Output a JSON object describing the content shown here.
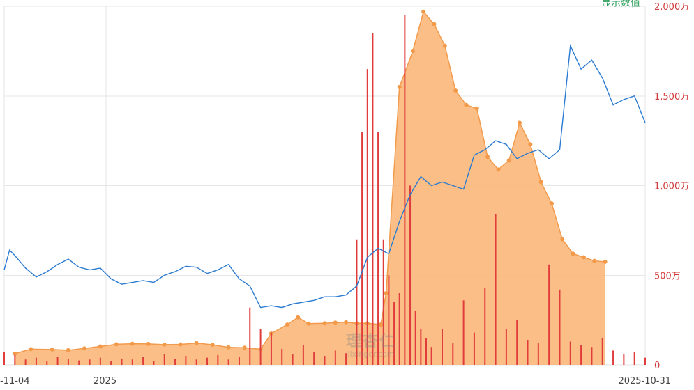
{
  "chart_data": {
    "type": "line",
    "title": "",
    "series_label": "显示数值",
    "y_right": {
      "ticks": [
        0,
        500,
        1000,
        1500,
        2000
      ],
      "tick_labels": [
        "0",
        "500万",
        "1,000万",
        "1,500万",
        "2,000万"
      ],
      "ylim": [
        0,
        2000
      ]
    },
    "x_axis": {
      "tick_labels": [
        "-11-04",
        "2025",
        "2025-10-31"
      ]
    },
    "watermark": {
      "logo": "理杏仁",
      "site": "lixinger.com"
    },
    "colors": {
      "area": "#f29a4a",
      "area_fill": "#fbb97c",
      "line": "#2b7bd1",
      "bars": "#e03c3c",
      "grid": "#e6e6e6"
    },
    "series": [
      {
        "type": "area",
        "values": [
          [
            0.02,
            63
          ],
          [
            0.05,
            88
          ],
          [
            0.09,
            86
          ],
          [
            0.12,
            82
          ],
          [
            0.15,
            92
          ],
          [
            0.18,
            103
          ],
          [
            0.21,
            115
          ],
          [
            0.24,
            118
          ],
          [
            0.27,
            117
          ],
          [
            0.3,
            113
          ],
          [
            0.33,
            114
          ],
          [
            0.36,
            122
          ],
          [
            0.39,
            112
          ],
          [
            0.42,
            98
          ],
          [
            0.45,
            96
          ],
          [
            0.48,
            88
          ],
          [
            0.5,
            175
          ],
          [
            0.53,
            225
          ],
          [
            0.55,
            265
          ],
          [
            0.57,
            230
          ],
          [
            0.6,
            232
          ],
          [
            0.62,
            236
          ],
          [
            0.64,
            238
          ],
          [
            0.66,
            232
          ],
          [
            0.68,
            232
          ],
          [
            0.705,
            225
          ],
          [
            0.715,
            400
          ],
          [
            0.74,
            1550
          ],
          [
            0.765,
            1750
          ],
          [
            0.785,
            1970
          ],
          [
            0.805,
            1900
          ],
          [
            0.825,
            1780
          ],
          [
            0.845,
            1530
          ],
          [
            0.865,
            1450
          ],
          [
            0.885,
            1430
          ],
          [
            0.905,
            1160
          ],
          [
            0.925,
            1090
          ],
          [
            0.945,
            1140
          ],
          [
            0.965,
            1350
          ],
          [
            0.985,
            1230
          ],
          [
            1.005,
            1020
          ],
          [
            1.025,
            900
          ],
          [
            1.045,
            700
          ],
          [
            1.065,
            620
          ],
          [
            1.085,
            600
          ],
          [
            1.105,
            580
          ],
          [
            1.125,
            575
          ]
        ]
      },
      {
        "type": "line",
        "values": [
          [
            0.0,
            530
          ],
          [
            0.01,
            640
          ],
          [
            0.02,
            610
          ],
          [
            0.04,
            540
          ],
          [
            0.06,
            490
          ],
          [
            0.08,
            520
          ],
          [
            0.1,
            560
          ],
          [
            0.12,
            590
          ],
          [
            0.14,
            545
          ],
          [
            0.16,
            530
          ],
          [
            0.18,
            540
          ],
          [
            0.2,
            480
          ],
          [
            0.22,
            450
          ],
          [
            0.24,
            460
          ],
          [
            0.26,
            470
          ],
          [
            0.28,
            460
          ],
          [
            0.3,
            500
          ],
          [
            0.32,
            520
          ],
          [
            0.34,
            550
          ],
          [
            0.36,
            545
          ],
          [
            0.38,
            510
          ],
          [
            0.4,
            530
          ],
          [
            0.42,
            560
          ],
          [
            0.44,
            480
          ],
          [
            0.46,
            440
          ],
          [
            0.48,
            320
          ],
          [
            0.5,
            330
          ],
          [
            0.52,
            320
          ],
          [
            0.54,
            340
          ],
          [
            0.56,
            350
          ],
          [
            0.58,
            360
          ],
          [
            0.6,
            380
          ],
          [
            0.62,
            380
          ],
          [
            0.64,
            390
          ],
          [
            0.66,
            440
          ],
          [
            0.68,
            600
          ],
          [
            0.7,
            650
          ],
          [
            0.72,
            620
          ],
          [
            0.74,
            800
          ],
          [
            0.76,
            950
          ],
          [
            0.78,
            1050
          ],
          [
            0.8,
            1000
          ],
          [
            0.82,
            1020
          ],
          [
            0.84,
            1000
          ],
          [
            0.86,
            980
          ],
          [
            0.88,
            1170
          ],
          [
            0.9,
            1200
          ],
          [
            0.92,
            1250
          ],
          [
            0.94,
            1230
          ],
          [
            0.96,
            1150
          ],
          [
            0.98,
            1180
          ],
          [
            1.0,
            1200
          ],
          [
            1.02,
            1150
          ],
          [
            1.04,
            1200
          ],
          [
            1.06,
            1780
          ],
          [
            1.08,
            1650
          ],
          [
            1.1,
            1700
          ],
          [
            1.12,
            1600
          ],
          [
            1.14,
            1450
          ],
          [
            1.16,
            1480
          ],
          [
            1.18,
            1500
          ],
          [
            1.2,
            1350
          ]
        ]
      }
    ],
    "bars": [
      [
        0.0,
        70
      ],
      [
        0.02,
        55
      ],
      [
        0.04,
        30
      ],
      [
        0.06,
        40
      ],
      [
        0.08,
        20
      ],
      [
        0.1,
        45
      ],
      [
        0.12,
        35
      ],
      [
        0.14,
        25
      ],
      [
        0.16,
        30
      ],
      [
        0.18,
        40
      ],
      [
        0.2,
        20
      ],
      [
        0.22,
        35
      ],
      [
        0.24,
        30
      ],
      [
        0.26,
        45
      ],
      [
        0.28,
        20
      ],
      [
        0.3,
        60
      ],
      [
        0.32,
        35
      ],
      [
        0.34,
        50
      ],
      [
        0.36,
        30
      ],
      [
        0.38,
        40
      ],
      [
        0.4,
        55
      ],
      [
        0.42,
        30
      ],
      [
        0.44,
        45
      ],
      [
        0.46,
        320
      ],
      [
        0.48,
        200
      ],
      [
        0.5,
        180
      ],
      [
        0.52,
        90
      ],
      [
        0.54,
        60
      ],
      [
        0.56,
        110
      ],
      [
        0.58,
        70
      ],
      [
        0.6,
        50
      ],
      [
        0.62,
        80
      ],
      [
        0.64,
        65
      ],
      [
        0.66,
        700
      ],
      [
        0.67,
        1300
      ],
      [
        0.68,
        1650
      ],
      [
        0.69,
        1850
      ],
      [
        0.7,
        1300
      ],
      [
        0.71,
        700
      ],
      [
        0.72,
        500
      ],
      [
        0.73,
        350
      ],
      [
        0.74,
        400
      ],
      [
        0.75,
        1950
      ],
      [
        0.76,
        1000
      ],
      [
        0.77,
        300
      ],
      [
        0.78,
        200
      ],
      [
        0.79,
        150
      ],
      [
        0.8,
        100
      ],
      [
        0.82,
        200
      ],
      [
        0.84,
        120
      ],
      [
        0.86,
        360
      ],
      [
        0.88,
        180
      ],
      [
        0.9,
        430
      ],
      [
        0.92,
        840
      ],
      [
        0.94,
        200
      ],
      [
        0.96,
        250
      ],
      [
        0.98,
        140
      ],
      [
        1.0,
        120
      ],
      [
        1.02,
        560
      ],
      [
        1.04,
        420
      ],
      [
        1.06,
        130
      ],
      [
        1.08,
        110
      ],
      [
        1.1,
        100
      ],
      [
        1.12,
        150
      ],
      [
        1.14,
        80
      ],
      [
        1.16,
        60
      ],
      [
        1.18,
        70
      ],
      [
        1.2,
        40
      ]
    ]
  }
}
